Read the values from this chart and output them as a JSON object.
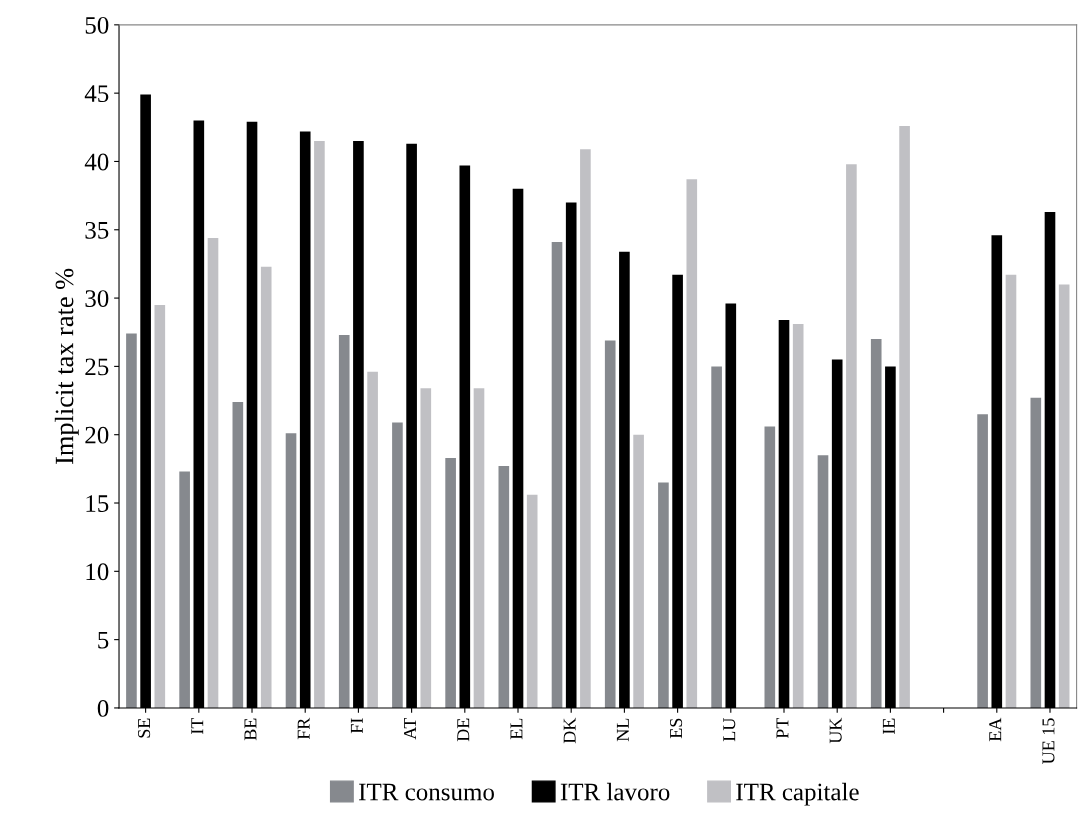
{
  "chart_data": {
    "type": "bar",
    "ylabel": "Implicit tax rate %",
    "categories": [
      "SE",
      "IT",
      "BE",
      "FR",
      "FI",
      "AT",
      "DE",
      "EL",
      "DK",
      "NL",
      "ES",
      "LU",
      "PT",
      "UK",
      "IE",
      null,
      "EA",
      "UE 15"
    ],
    "series": [
      {
        "name": "ITR consumo",
        "color": "#86898e",
        "values": [
          27.4,
          17.3,
          22.4,
          20.1,
          27.3,
          20.9,
          18.3,
          17.7,
          34.1,
          26.9,
          16.5,
          25.0,
          20.6,
          18.5,
          27.0,
          null,
          21.5,
          22.7
        ]
      },
      {
        "name": "ITR lavoro",
        "color": "#000000",
        "values": [
          44.9,
          43.0,
          42.9,
          42.2,
          41.5,
          41.3,
          39.7,
          38.0,
          37.0,
          33.4,
          31.7,
          29.6,
          28.4,
          25.5,
          25.0,
          null,
          34.6,
          36.3
        ]
      },
      {
        "name": "ITR capitale",
        "color": "#c0c0c4",
        "values": [
          29.5,
          34.4,
          32.3,
          41.5,
          24.6,
          23.4,
          23.4,
          15.6,
          40.9,
          20.0,
          38.7,
          null,
          28.1,
          39.8,
          42.6,
          null,
          31.7,
          31.0
        ]
      }
    ],
    "ylim": [
      0,
      50
    ],
    "yticks": [
      0,
      5,
      10,
      15,
      20,
      25,
      30,
      35,
      40,
      45,
      50
    ],
    "grid": false,
    "legend": "bottom"
  }
}
